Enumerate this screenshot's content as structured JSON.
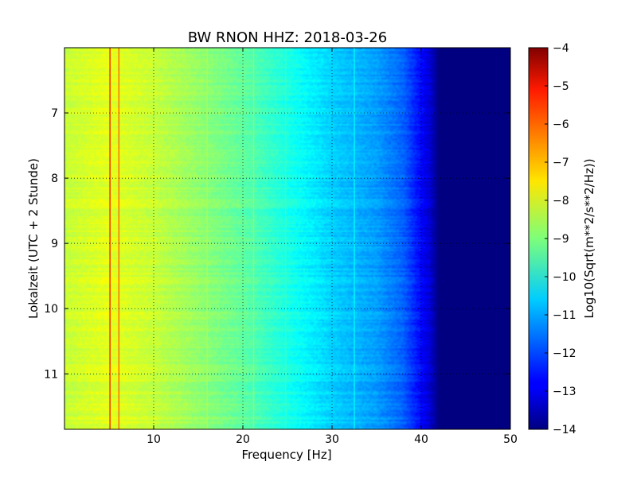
{
  "chart_data": {
    "type": "heatmap",
    "title": "BW RNON HHZ: 2018-03-26",
    "xlabel": "Frequency [Hz]",
    "ylabel": "Lokalzeit (UTC + 2 Stunde)",
    "xlim": [
      0,
      50
    ],
    "ylim": [
      6.0,
      11.85
    ],
    "y_inverted": true,
    "x_ticks": [
      10,
      20,
      30,
      40,
      50
    ],
    "y_ticks": [
      7,
      8,
      9,
      10,
      11
    ],
    "grid": true,
    "colormap": "jet",
    "colorbar": {
      "label": "Log10(Sqrt(m**2/s**2/Hz))",
      "range": [
        -14,
        -4
      ],
      "ticks": [
        -4,
        -5,
        -6,
        -7,
        -8,
        -9,
        -10,
        -11,
        -12,
        -13,
        -14
      ]
    },
    "level_by_frequency": [
      {
        "hz": 0,
        "value": -8.3
      },
      {
        "hz": 5,
        "value": -8.0
      },
      {
        "hz": 10,
        "value": -8.3
      },
      {
        "hz": 15,
        "value": -8.8
      },
      {
        "hz": 20,
        "value": -9.3
      },
      {
        "hz": 25,
        "value": -10.0
      },
      {
        "hz": 30,
        "value": -10.7
      },
      {
        "hz": 35,
        "value": -11.2
      },
      {
        "hz": 38,
        "value": -11.8
      },
      {
        "hz": 41,
        "value": -13.2
      },
      {
        "hz": 42,
        "value": -14.0
      },
      {
        "hz": 50,
        "value": -14.0
      }
    ],
    "spectral_lines": [
      {
        "hz": 5.1,
        "value": -5.5
      },
      {
        "hz": 6.1,
        "value": -6.2
      },
      {
        "hz": 16.0,
        "value": -8.6
      },
      {
        "hz": 21.2,
        "value": -8.9
      },
      {
        "hz": 24.8,
        "value": -9.7
      },
      {
        "hz": 32.5,
        "value": -10.3
      }
    ]
  }
}
